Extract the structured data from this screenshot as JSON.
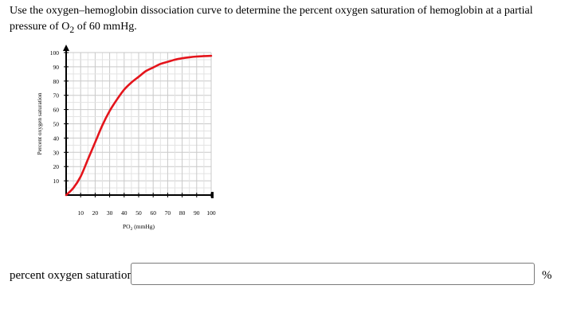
{
  "question": {
    "text_before": "Use the oxygen–hemoglobin dissociation curve to determine the percent oxygen saturation of hemoglobin at a partial pressure of O",
    "subscript": "2",
    "text_after": " of 60 mmHg."
  },
  "chart_data": {
    "type": "line",
    "xlabel_main": "PO",
    "xlabel_sub": "2",
    "xlabel_unit": " (mmHg)",
    "ylabel": "Percent oxygen saturation",
    "xlim": [
      0,
      100
    ],
    "ylim": [
      0,
      100
    ],
    "x_ticks": [
      10,
      20,
      30,
      40,
      50,
      60,
      70,
      80,
      90,
      100
    ],
    "y_ticks": [
      10,
      20,
      30,
      40,
      50,
      60,
      70,
      80,
      90,
      100
    ],
    "grid": true,
    "series": [
      {
        "color": "#e4141b",
        "x": [
          0,
          5,
          10,
          15,
          20,
          25,
          30,
          35,
          40,
          45,
          50,
          55,
          60,
          65,
          70,
          75,
          80,
          85,
          90,
          95,
          100
        ],
        "y": [
          0,
          5,
          13,
          25,
          37,
          49,
          59,
          67,
          74,
          79,
          83,
          87,
          89.5,
          92,
          93.5,
          95,
          96,
          96.7,
          97.2,
          97.5,
          97.7
        ]
      }
    ]
  },
  "answer": {
    "label": "percent oxygen saturation:",
    "value": "",
    "unit": "%"
  }
}
